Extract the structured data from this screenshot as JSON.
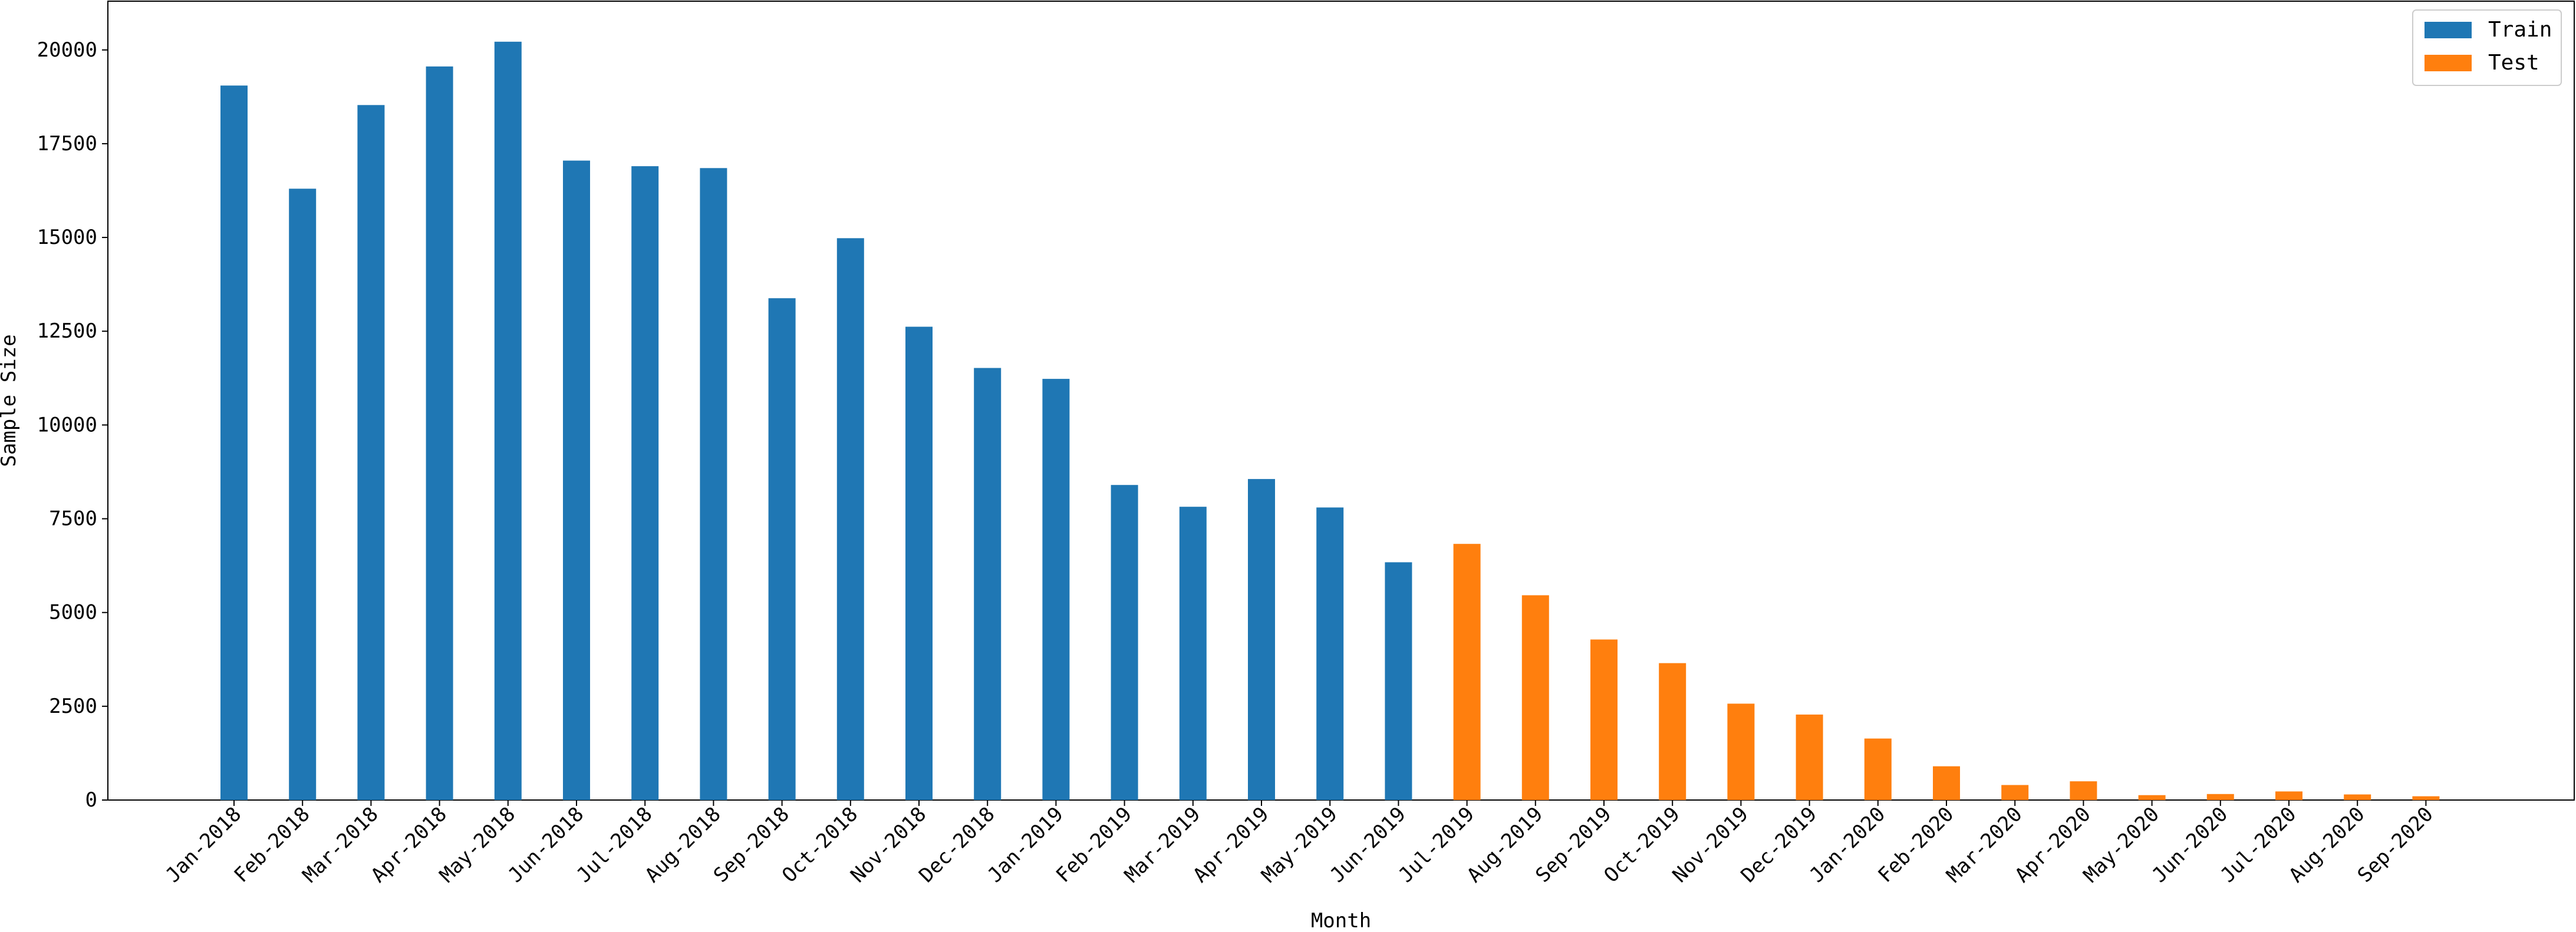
{
  "chart_data": {
    "type": "bar",
    "xlabel": "Month",
    "ylabel": "Sample Size",
    "ylim": [
      0,
      21300
    ],
    "yticks": [
      0,
      2500,
      5000,
      7500,
      10000,
      12500,
      15000,
      17500,
      20000
    ],
    "ytick_labels": [
      "0",
      "2500",
      "5000",
      "7500",
      "10000",
      "12500",
      "15000",
      "17500",
      "20000"
    ],
    "grid": false,
    "legend_position": "top-right",
    "categories": [
      "Jan-2018",
      "Feb-2018",
      "Mar-2018",
      "Apr-2018",
      "May-2018",
      "Jun-2018",
      "Jul-2018",
      "Aug-2018",
      "Sep-2018",
      "Oct-2018",
      "Nov-2018",
      "Dec-2018",
      "Jan-2019",
      "Feb-2019",
      "Mar-2019",
      "Apr-2019",
      "May-2019",
      "Jun-2019",
      "Jul-2019",
      "Aug-2019",
      "Sep-2019",
      "Oct-2019",
      "Nov-2019",
      "Dec-2019",
      "Jan-2020",
      "Feb-2020",
      "Mar-2020",
      "Apr-2020",
      "May-2020",
      "Jun-2020",
      "Jul-2020",
      "Aug-2020",
      "Sep-2020"
    ],
    "series": [
      {
        "name": "Train",
        "color": "#1f77b4",
        "values": [
          19050,
          16300,
          18530,
          19560,
          20220,
          17050,
          16900,
          16850,
          13380,
          14980,
          12620,
          11520,
          11230,
          8400,
          7820,
          8560,
          7800,
          6340,
          null,
          null,
          null,
          null,
          null,
          null,
          null,
          null,
          null,
          null,
          null,
          null,
          null,
          null,
          null
        ]
      },
      {
        "name": "Test",
        "color": "#ff7f0e",
        "values": [
          null,
          null,
          null,
          null,
          null,
          null,
          null,
          null,
          null,
          null,
          null,
          null,
          null,
          null,
          null,
          null,
          null,
          null,
          6830,
          5460,
          4280,
          3650,
          2570,
          2280,
          1640,
          900,
          400,
          500,
          130,
          160,
          230,
          150,
          100
        ]
      }
    ]
  }
}
